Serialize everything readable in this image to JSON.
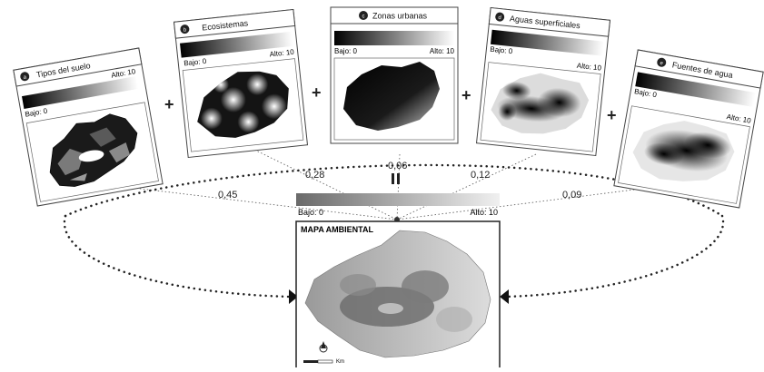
{
  "panels": [
    {
      "badge": "a",
      "title": "Tipos del suelo",
      "low": "Bajo: 0",
      "high": "Alto: 10",
      "weight": "0,45"
    },
    {
      "badge": "b",
      "title": "Ecosistemas",
      "low": "Bajo: 0",
      "high": "Alto: 10",
      "weight": "0,28"
    },
    {
      "badge": "c",
      "title": "Zonas urbanas",
      "low": "Bajo: 0",
      "high": "Alto: 10",
      "weight": "0,06"
    },
    {
      "badge": "d",
      "title": "Aguas superficiales",
      "low": "Bajo: 0",
      "high": "Alto: 10",
      "weight": "0,12"
    },
    {
      "badge": "e",
      "title": "Fuentes de agua",
      "low": "Bajo: 0",
      "high": "Alto: 10",
      "weight": "0,09"
    }
  ],
  "operators": {
    "plus": "+",
    "equals": "="
  },
  "result": {
    "title": "MAPA AMBIENTAL",
    "low": "Bajo: 0",
    "high": "Alto: 10",
    "scale_unit": "Km"
  },
  "colors": {
    "line": "#333333",
    "frame": "#444444",
    "map_dark": "#111111",
    "map_light": "#f2f2f2"
  }
}
